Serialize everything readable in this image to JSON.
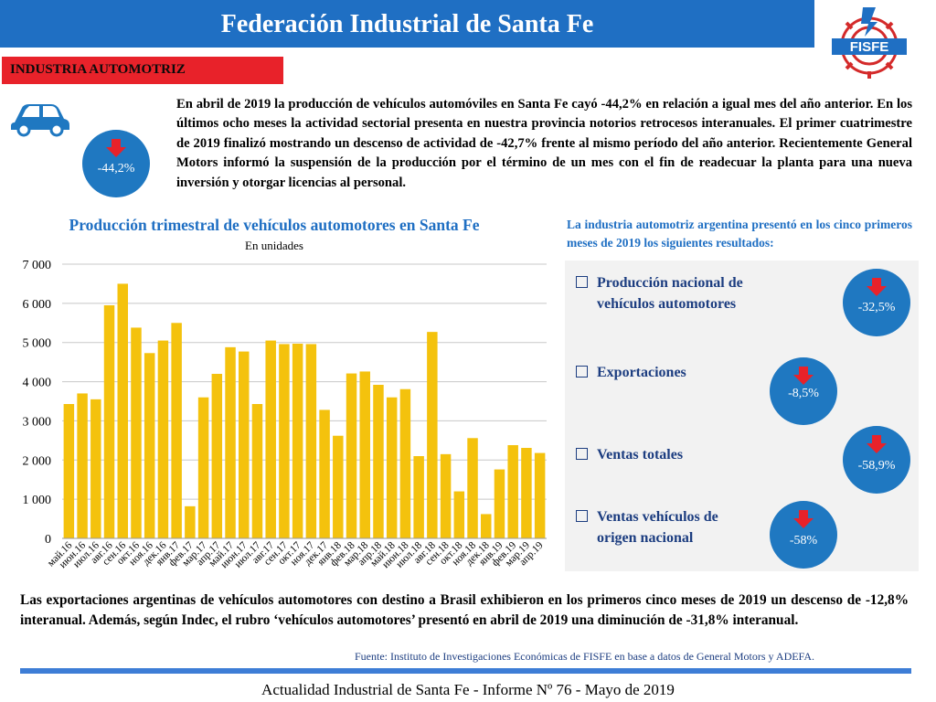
{
  "header": {
    "title": "Federación Industrial de Santa Fe",
    "logo_text": "FISFE"
  },
  "section": {
    "label": "INDUSTRIA AUTOMOTRIZ"
  },
  "main_badge": {
    "value": "-44,2%"
  },
  "intro": "En abril de 2019 la producción de vehículos automóviles en Santa Fe cayó -44,2% en relación a igual mes del año anterior. En los últimos ocho meses la actividad sectorial presenta en nuestra provincia notorios retrocesos interanuales. El primer cuatrimestre de 2019 finalizó mostrando un descenso de actividad de -42,7% frente al mismo período del año anterior. Recientemente General Motors informó la suspensión de la producción por el término de un mes con el fin de readecuar la planta para una nueva inversión y otorgar licencias al personal.",
  "right": {
    "heading": "La industria automotriz argentina presentó en los cinco primeros meses de 2019 los siguientes resultados:",
    "items": [
      {
        "label_lines": [
          "Producción nacional de",
          "vehículos automotores"
        ],
        "value": "-32,5%"
      },
      {
        "label_lines": [
          "Exportaciones"
        ],
        "value": "-8,5%"
      },
      {
        "label_lines": [
          "Ventas totales"
        ],
        "value": "-58,9%"
      },
      {
        "label_lines": [
          "Ventas vehículos de",
          "origen nacional"
        ],
        "value": "-58%"
      }
    ]
  },
  "chart_data": {
    "type": "bar",
    "title": "Producción trimestral de vehículos automotores en Santa Fe",
    "subtitle": "En unidades",
    "categories": [
      "май.16",
      "июн.16",
      "июл.16",
      "авг.16",
      "сен.16",
      "окт.16",
      "ноя.16",
      "дек.16",
      "янв.17",
      "фев.17",
      "мар.17",
      "апр.17",
      "май.17",
      "июн.17",
      "июл.17",
      "авг.17",
      "сен.17",
      "окт.17",
      "ноя.17",
      "дек.17",
      "янв.18",
      "фев.18",
      "мар.18",
      "апр.18",
      "май.18",
      "июн.18",
      "июл.18",
      "авг.18",
      "сен.18",
      "окт.18",
      "ноя.18",
      "дек.18",
      "янв.19",
      "фев.19",
      "мар.19",
      "апр.19"
    ],
    "values": [
      3430,
      3700,
      3550,
      5950,
      6500,
      5380,
      4730,
      5050,
      5500,
      820,
      3600,
      4200,
      4880,
      4770,
      3430,
      5050,
      4960,
      4970,
      4960,
      3280,
      2620,
      4210,
      4260,
      3920,
      3600,
      3810,
      2100,
      5270,
      2150,
      1200,
      2560,
      620,
      1760,
      2380,
      2310,
      2180
    ],
    "ylim": [
      0,
      7000
    ],
    "yticks": [
      "0",
      "1 000",
      "2 000",
      "3 000",
      "4 000",
      "5 000",
      "6 000",
      "7 000"
    ],
    "bar_color": "#f4c20d",
    "grid": true
  },
  "bottom": {
    "text": "Las exportaciones argentinas de vehículos automotores con destino a Brasil exhibieron en los primeros cinco meses de 2019 un descenso de -12,8% interanual. Además, según Indec, el rubro ‘vehículos automotores’ presentó en abril de 2019 una diminución de -31,8% interanual.",
    "source": "Fuente: Instituto de Investigaciones Económicas de FISFE en base a datos de General Motors y ADEFA."
  },
  "footer": {
    "text": "Actualidad Industrial de Santa Fe - Informe Nº 76 - Mayo de 2019"
  },
  "colors": {
    "blue": "#1f6fc3",
    "red": "#e8222a",
    "badge_blue": "#1f78c1",
    "arrow_red": "#e8222a",
    "dark_text": "#1c3d80"
  }
}
